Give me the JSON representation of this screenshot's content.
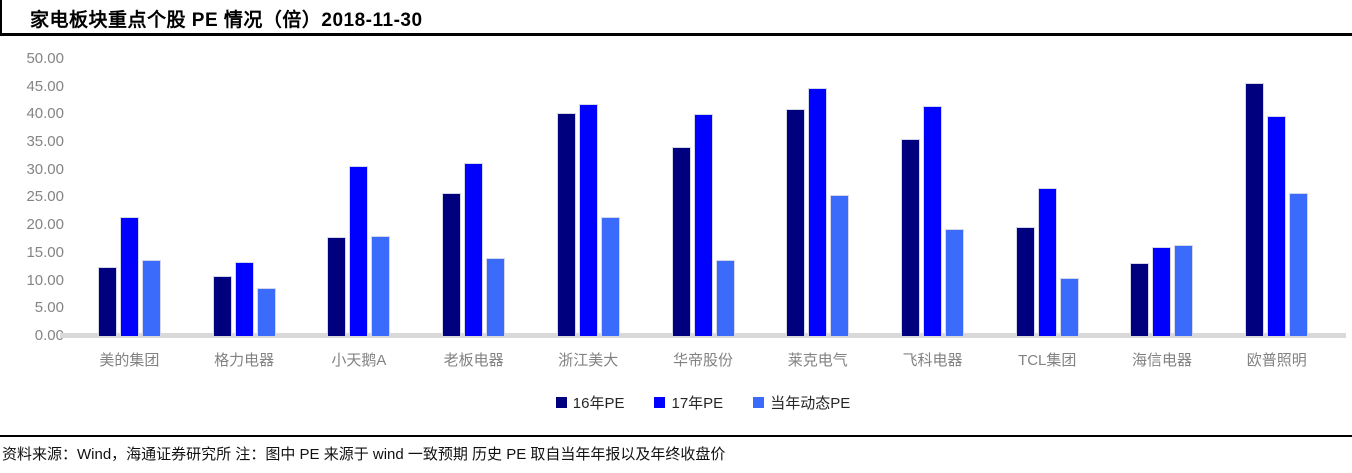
{
  "header": {
    "title": "家电板块重点个股 PE 情况（倍）2018-11-30"
  },
  "chart_data": {
    "type": "bar",
    "title": "家电板块重点个股 PE 情况（倍）2018-11-30",
    "categories": [
      "美的集团",
      "格力电器",
      "小天鹅A",
      "老板电器",
      "浙江美大",
      "华帝股份",
      "莱克电气",
      "飞科电器",
      "TCL集团",
      "海信电器",
      "欧普照明"
    ],
    "series": [
      {
        "name": "16年PE",
        "color": "#00007E",
        "values": [
          12.5,
          10.9,
          17.9,
          25.8,
          40.3,
          34.2,
          41.0,
          35.6,
          19.7,
          13.2,
          45.6
        ]
      },
      {
        "name": "17年PE",
        "color": "#0000FE",
        "values": [
          21.5,
          13.4,
          30.6,
          31.2,
          41.8,
          40.0,
          44.8,
          41.6,
          26.8,
          16.1,
          39.8
        ]
      },
      {
        "name": "当年动态PE",
        "color": "#3A6BFA",
        "values": [
          13.7,
          8.6,
          18.0,
          14.0,
          21.5,
          13.7,
          25.4,
          19.4,
          10.5,
          16.4,
          25.9
        ]
      }
    ],
    "xlabel": "",
    "ylabel": "",
    "ylim": [
      0,
      50
    ],
    "ytick_step": 5,
    "ytick_format_decimals": 2,
    "grid": false,
    "legend_position": "bottom",
    "axis_label_color": "#848484",
    "baseline_color": "#d9d9d9"
  },
  "footer": {
    "source_note": "资料来源：Wind，海通证券研究所 注：图中 PE 来源于 wind 一致预期 历史 PE 取自当年年报以及年终收盘价"
  }
}
